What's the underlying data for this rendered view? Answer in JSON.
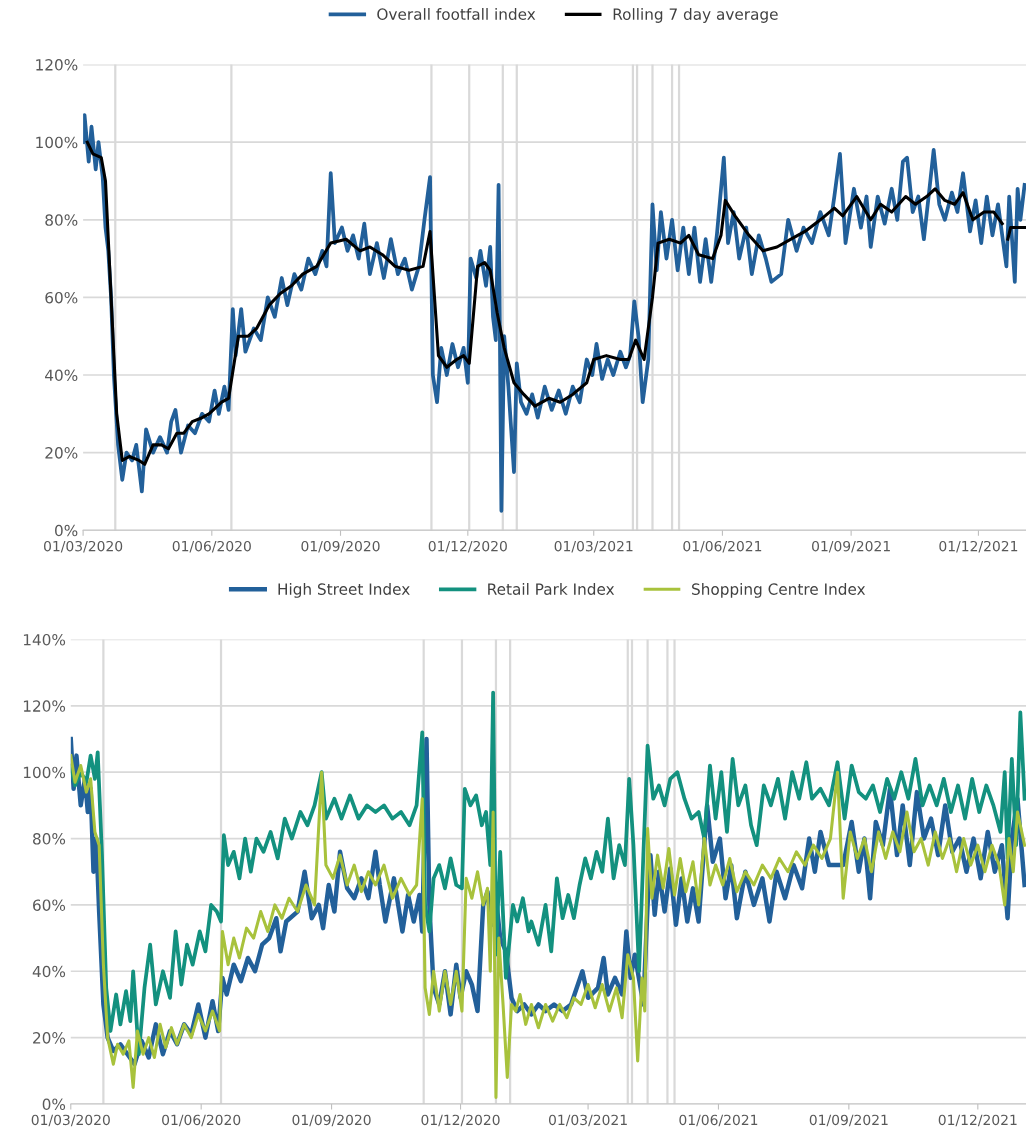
{
  "chart_data": [
    {
      "type": "line",
      "legend": "top",
      "grid": "y",
      "xlim": [
        "2020-03-01",
        "2022-01-04"
      ],
      "ylim": [
        0,
        120
      ],
      "yticks": [
        {
          "value": 0,
          "label": "0%"
        },
        {
          "value": 20,
          "label": "20%"
        },
        {
          "value": 40,
          "label": "40%"
        },
        {
          "value": 60,
          "label": "60%"
        },
        {
          "value": 80,
          "label": "80%"
        },
        {
          "value": 100,
          "label": "100%"
        },
        {
          "value": 120,
          "label": "120%"
        }
      ],
      "xticks": [
        {
          "value": "2020-03-01",
          "label": "01/03/2020"
        },
        {
          "value": "2020-06-01",
          "label": "01/06/2020"
        },
        {
          "value": "2020-09-01",
          "label": "01/09/2020"
        },
        {
          "value": "2020-12-01",
          "label": "01/12/2020"
        },
        {
          "value": "2021-03-01",
          "label": "01/03/2021"
        },
        {
          "value": "2021-06-01",
          "label": "01/06/2021"
        },
        {
          "value": "2021-09-01",
          "label": "01/09/2021"
        },
        {
          "value": "2021-12-01",
          "label": "01/12/2021"
        }
      ],
      "ref_lines": [
        {
          "axis": "x",
          "value": "2020-03-24",
          "color": "#d9d9d9"
        },
        {
          "axis": "x",
          "value": "2020-06-15",
          "color": "#d9d9d9"
        },
        {
          "axis": "x",
          "value": "2020-11-05",
          "color": "#d9d9d9"
        },
        {
          "axis": "x",
          "value": "2020-12-02",
          "color": "#d9d9d9"
        },
        {
          "axis": "x",
          "value": "2020-12-26",
          "color": "#d9d9d9"
        },
        {
          "axis": "x",
          "value": "2021-01-05",
          "color": "#d9d9d9"
        },
        {
          "axis": "x",
          "value": "2021-03-29",
          "color": "#d9d9d9"
        },
        {
          "axis": "x",
          "value": "2021-04-01",
          "color": "#d9d9d9"
        },
        {
          "axis": "x",
          "value": "2021-04-12",
          "color": "#d9d9d9"
        },
        {
          "axis": "x",
          "value": "2021-04-26",
          "color": "#d9d9d9"
        },
        {
          "axis": "x",
          "value": "2021-05-01",
          "color": "#d9d9d9"
        }
      ],
      "series": [
        {
          "name": "Overall footfall index",
          "color": "#22609a",
          "x": [
            "2020-03-01",
            "2020-03-02",
            "2020-03-05",
            "2020-03-07",
            "2020-03-10",
            "2020-03-12",
            "2020-03-15",
            "2020-03-17",
            "2020-03-19",
            "2020-03-21",
            "2020-03-23",
            "2020-03-26",
            "2020-03-29",
            "2020-04-01",
            "2020-04-05",
            "2020-04-08",
            "2020-04-12",
            "2020-04-15",
            "2020-04-20",
            "2020-04-25",
            "2020-04-30",
            "2020-05-03",
            "2020-05-06",
            "2020-05-10",
            "2020-05-15",
            "2020-05-20",
            "2020-05-25",
            "2020-05-30",
            "2020-06-03",
            "2020-06-06",
            "2020-06-10",
            "2020-06-13",
            "2020-06-16",
            "2020-06-18",
            "2020-06-22",
            "2020-06-25",
            "2020-07-01",
            "2020-07-06",
            "2020-07-11",
            "2020-07-16",
            "2020-07-21",
            "2020-07-25",
            "2020-07-30",
            "2020-08-04",
            "2020-08-09",
            "2020-08-14",
            "2020-08-19",
            "2020-08-22",
            "2020-08-25",
            "2020-08-28",
            "2020-09-02",
            "2020-09-06",
            "2020-09-10",
            "2020-09-14",
            "2020-09-18",
            "2020-09-22",
            "2020-09-27",
            "2020-10-02",
            "2020-10-07",
            "2020-10-12",
            "2020-10-17",
            "2020-10-22",
            "2020-10-27",
            "2020-10-31",
            "2020-11-04",
            "2020-11-06",
            "2020-11-09",
            "2020-11-12",
            "2020-11-16",
            "2020-11-20",
            "2020-11-24",
            "2020-11-28",
            "2020-12-01",
            "2020-12-03",
            "2020-12-07",
            "2020-12-10",
            "2020-12-14",
            "2020-12-17",
            "2020-12-19",
            "2020-12-21",
            "2020-12-23",
            "2020-12-25",
            "2020-12-27",
            "2020-12-30",
            "2021-01-03",
            "2021-01-05",
            "2021-01-08",
            "2021-01-12",
            "2021-01-16",
            "2021-01-20",
            "2021-01-25",
            "2021-01-30",
            "2021-02-04",
            "2021-02-09",
            "2021-02-14",
            "2021-02-19",
            "2021-02-24",
            "2021-02-28",
            "2021-03-03",
            "2021-03-07",
            "2021-03-11",
            "2021-03-15",
            "2021-03-20",
            "2021-03-24",
            "2021-03-27",
            "2021-03-30",
            "2021-04-02",
            "2021-04-05",
            "2021-04-09",
            "2021-04-12",
            "2021-04-15",
            "2021-04-18",
            "2021-04-22",
            "2021-04-26",
            "2021-04-30",
            "2021-05-04",
            "2021-05-08",
            "2021-05-12",
            "2021-05-16",
            "2021-05-20",
            "2021-05-24",
            "2021-05-28",
            "2021-06-02",
            "2021-06-05",
            "2021-06-09",
            "2021-06-13",
            "2021-06-18",
            "2021-06-22",
            "2021-06-27",
            "2021-07-02",
            "2021-07-06",
            "2021-07-13",
            "2021-07-18",
            "2021-07-24",
            "2021-07-29",
            "2021-08-04",
            "2021-08-10",
            "2021-08-16",
            "2021-08-20",
            "2021-08-24",
            "2021-08-28",
            "2021-09-03",
            "2021-09-08",
            "2021-09-12",
            "2021-09-15",
            "2021-09-20",
            "2021-09-25",
            "2021-09-30",
            "2021-10-04",
            "2021-10-08",
            "2021-10-11",
            "2021-10-15",
            "2021-10-19",
            "2021-10-23",
            "2021-10-27",
            "2021-10-30",
            "2021-11-03",
            "2021-11-07",
            "2021-11-12",
            "2021-11-16",
            "2021-11-20",
            "2021-11-25",
            "2021-11-29",
            "2021-12-03",
            "2021-12-07",
            "2021-12-11",
            "2021-12-15",
            "2021-12-21",
            "2021-12-23",
            "2021-12-27",
            "2021-12-29",
            "2021-12-31",
            "2022-01-03"
          ],
          "values": [
            100,
            107,
            95,
            104,
            93,
            100,
            91,
            78,
            72,
            60,
            40,
            22,
            13,
            20,
            18,
            22,
            10,
            26,
            20,
            24,
            20,
            28,
            31,
            20,
            27,
            25,
            30,
            28,
            36,
            30,
            37,
            31,
            57,
            45,
            57,
            46,
            52,
            49,
            60,
            55,
            65,
            58,
            66,
            62,
            70,
            66,
            72,
            68,
            92,
            74,
            78,
            72,
            76,
            70,
            79,
            66,
            74,
            65,
            75,
            66,
            70,
            62,
            68,
            80,
            91,
            40,
            33,
            47,
            40,
            48,
            42,
            47,
            38,
            70,
            65,
            72,
            63,
            73,
            55,
            49,
            89,
            5,
            50,
            37,
            15,
            43,
            33,
            30,
            35,
            29,
            37,
            31,
            36,
            30,
            37,
            33,
            44,
            40,
            48,
            39,
            44,
            40,
            46,
            42,
            45,
            59,
            50,
            33,
            44,
            84,
            67,
            82,
            70,
            80,
            67,
            78,
            66,
            78,
            64,
            75,
            64,
            76,
            96,
            74,
            82,
            70,
            78,
            66,
            76,
            70,
            64,
            66,
            80,
            72,
            78,
            74,
            82,
            76,
            86,
            97,
            74,
            88,
            78,
            86,
            73,
            86,
            79,
            88,
            80,
            95,
            96,
            82,
            86,
            75,
            88,
            98,
            84,
            80,
            87,
            82,
            92,
            77,
            85,
            74,
            86,
            76,
            84,
            68,
            86,
            64,
            88,
            80,
            89
          ]
        },
        {
          "name": "Rolling 7 day average",
          "color": "#000000",
          "x": [
            "2020-03-04",
            "2020-03-08",
            "2020-03-14",
            "2020-03-17",
            "2020-03-21",
            "2020-03-25",
            "2020-03-29",
            "2020-04-03",
            "2020-04-10",
            "2020-04-14",
            "2020-04-20",
            "2020-04-26",
            "2020-05-01",
            "2020-05-07",
            "2020-05-12",
            "2020-05-18",
            "2020-05-25",
            "2020-05-30",
            "2020-06-08",
            "2020-06-13",
            "2020-06-20",
            "2020-06-27",
            "2020-07-03",
            "2020-07-12",
            "2020-07-20",
            "2020-07-28",
            "2020-08-05",
            "2020-08-15",
            "2020-08-25",
            "2020-09-05",
            "2020-09-15",
            "2020-09-22",
            "2020-10-01",
            "2020-10-10",
            "2020-10-20",
            "2020-10-30",
            "2020-11-04",
            "2020-11-10",
            "2020-11-16",
            "2020-11-23",
            "2020-11-28",
            "2020-12-02",
            "2020-12-08",
            "2020-12-13",
            "2020-12-17",
            "2020-12-22",
            "2020-12-27",
            "2021-01-03",
            "2021-01-10",
            "2021-01-18",
            "2021-01-28",
            "2021-02-05",
            "2021-02-14",
            "2021-02-24",
            "2021-03-01",
            "2021-03-10",
            "2021-03-20",
            "2021-03-26",
            "2021-03-31",
            "2021-04-06",
            "2021-04-12",
            "2021-04-16",
            "2021-04-24",
            "2021-05-02",
            "2021-05-08",
            "2021-05-15",
            "2021-05-25",
            "2021-05-31",
            "2021-06-03",
            "2021-06-10",
            "2021-06-20",
            "2021-06-30",
            "2021-07-10",
            "2021-07-20",
            "2021-07-30",
            "2021-08-10",
            "2021-08-20",
            "2021-08-26",
            "2021-09-05",
            "2021-09-15",
            "2021-09-22",
            "2021-09-30",
            "2021-10-10",
            "2021-10-17",
            "2021-10-25",
            "2021-10-31",
            "2021-11-07",
            "2021-11-14",
            "2021-11-20",
            "2021-11-27",
            "2021-12-05",
            "2021-12-12",
            "2021-12-18",
            "2021-12-20",
            "2021-12-22",
            "2021-12-24",
            "2021-12-31",
            "2022-01-03"
          ],
          "values": [
            100,
            97,
            96,
            90,
            60,
            30,
            18,
            19,
            18,
            17,
            22,
            22,
            21,
            25,
            25,
            28,
            29,
            30,
            33,
            34,
            50,
            50,
            52,
            58,
            61,
            63,
            66,
            68,
            74,
            75,
            72,
            73,
            71,
            68,
            67,
            68,
            77,
            45,
            42,
            44,
            45,
            43,
            68,
            69,
            67,
            56,
            47,
            38,
            35,
            32,
            34,
            33,
            35,
            38,
            44,
            45,
            44,
            44,
            49,
            44,
            60,
            74,
            75,
            74,
            76,
            71,
            70,
            76,
            85,
            81,
            76,
            72,
            73,
            75,
            77,
            80,
            83,
            81,
            86,
            80,
            84,
            82,
            86,
            84,
            86,
            88,
            85,
            84,
            87,
            80,
            82,
            82,
            79,
            null,
            75,
            78,
            78,
            78
          ]
        }
      ]
    },
    {
      "type": "line",
      "legend": "top",
      "grid": "y",
      "xlim": [
        "2020-03-01",
        "2022-01-04"
      ],
      "ylim": [
        0,
        140
      ],
      "yticks": [
        {
          "value": 0,
          "label": "0%"
        },
        {
          "value": 20,
          "label": "20%"
        },
        {
          "value": 40,
          "label": "40%"
        },
        {
          "value": 60,
          "label": "60%"
        },
        {
          "value": 80,
          "label": "80%"
        },
        {
          "value": 100,
          "label": "100%"
        },
        {
          "value": 120,
          "label": "120%"
        },
        {
          "value": 140,
          "label": "140%"
        }
      ],
      "xticks": [
        {
          "value": "2020-03-01",
          "label": "01/03/2020"
        },
        {
          "value": "2020-06-01",
          "label": "01/06/2020"
        },
        {
          "value": "2020-09-01",
          "label": "01/09/2020"
        },
        {
          "value": "2020-12-01",
          "label": "01/12/2020"
        },
        {
          "value": "2021-03-01",
          "label": "01/03/2021"
        },
        {
          "value": "2021-06-01",
          "label": "01/06/2021"
        },
        {
          "value": "2021-09-01",
          "label": "01/09/2021"
        },
        {
          "value": "2021-12-01",
          "label": "01/12/2021"
        }
      ],
      "ref_lines": [
        {
          "axis": "x",
          "value": "2020-03-24",
          "color": "#d9d9d9"
        },
        {
          "axis": "x",
          "value": "2020-06-15",
          "color": "#d9d9d9"
        },
        {
          "axis": "x",
          "value": "2020-11-05",
          "color": "#d9d9d9"
        },
        {
          "axis": "x",
          "value": "2020-12-02",
          "color": "#d9d9d9"
        },
        {
          "axis": "x",
          "value": "2020-12-26",
          "color": "#d9d9d9"
        },
        {
          "axis": "x",
          "value": "2021-01-05",
          "color": "#d9d9d9"
        },
        {
          "axis": "x",
          "value": "2021-03-29",
          "color": "#d9d9d9"
        },
        {
          "axis": "x",
          "value": "2021-04-01",
          "color": "#d9d9d9"
        },
        {
          "axis": "x",
          "value": "2021-04-12",
          "color": "#d9d9d9"
        },
        {
          "axis": "x",
          "value": "2021-04-26",
          "color": "#d9d9d9"
        },
        {
          "axis": "x",
          "value": "2021-05-01",
          "color": "#d9d9d9"
        }
      ],
      "series": [
        {
          "name": "High Street Index",
          "color": "#22609a",
          "x": [
            "2020-03-01",
            "2020-03-03",
            "2020-03-05",
            "2020-03-08",
            "2020-03-11",
            "2020-03-13",
            "2020-03-15",
            "2020-03-17",
            "2020-03-19",
            "2020-03-21",
            "2020-03-24",
            "2020-03-27",
            "2020-03-31",
            "2020-04-05",
            "2020-04-10",
            "2020-04-15",
            "2020-04-20",
            "2020-04-25",
            "2020-04-30",
            "2020-05-05",
            "2020-05-10",
            "2020-05-15",
            "2020-05-20",
            "2020-05-25",
            "2020-05-30",
            "2020-06-04",
            "2020-06-09",
            "2020-06-13",
            "2020-06-16",
            "2020-06-19",
            "2020-06-24",
            "2020-06-29",
            "2020-07-04",
            "2020-07-09",
            "2020-07-14",
            "2020-07-19",
            "2020-07-24",
            "2020-07-27",
            "2020-07-31",
            "2020-08-08",
            "2020-08-13",
            "2020-08-18",
            "2020-08-23",
            "2020-08-26",
            "2020-08-30",
            "2020-09-03",
            "2020-09-07",
            "2020-09-12",
            "2020-09-17",
            "2020-09-22",
            "2020-09-27",
            "2020-10-02",
            "2020-10-05",
            "2020-10-09",
            "2020-10-15",
            "2020-10-21",
            "2020-10-25",
            "2020-10-29",
            "2020-11-02",
            "2020-11-04",
            "2020-11-07",
            "2020-11-09",
            "2020-11-12",
            "2020-11-16",
            "2020-11-20",
            "2020-11-24",
            "2020-11-28",
            "2020-12-01",
            "2020-12-05",
            "2020-12-09",
            "2020-12-13",
            "2020-12-17",
            "2020-12-20",
            "2020-12-23",
            "2020-12-26",
            "2020-12-29",
            "2021-01-02",
            "2021-01-06",
            "2021-01-10",
            "2021-01-15",
            "2021-01-20",
            "2021-01-25",
            "2021-01-30",
            "2021-02-05",
            "2021-02-11",
            "2021-02-17",
            "2021-02-25",
            "2021-03-01",
            "2021-03-08",
            "2021-03-12",
            "2021-03-15",
            "2021-03-20",
            "2021-03-25",
            "2021-03-28",
            "2021-03-31",
            "2021-04-03",
            "2021-04-09",
            "2021-04-12",
            "2021-04-14",
            "2021-04-17",
            "2021-04-20",
            "2021-04-24",
            "2021-04-28",
            "2021-05-02",
            "2021-05-06",
            "2021-05-10",
            "2021-05-14",
            "2021-05-18",
            "2021-05-24",
            "2021-05-28",
            "2021-06-02",
            "2021-06-06",
            "2021-06-10",
            "2021-06-14",
            "2021-06-20",
            "2021-06-26",
            "2021-07-02",
            "2021-07-07",
            "2021-07-12",
            "2021-07-18",
            "2021-07-24",
            "2021-07-30",
            "2021-08-04",
            "2021-08-08",
            "2021-08-12",
            "2021-08-18",
            "2021-08-28",
            "2021-09-03",
            "2021-09-08",
            "2021-09-12",
            "2021-09-16",
            "2021-09-20",
            "2021-09-25",
            "2021-09-30",
            "2021-10-05",
            "2021-10-09",
            "2021-10-14",
            "2021-10-19",
            "2021-10-24",
            "2021-10-29",
            "2021-11-03",
            "2021-11-08",
            "2021-11-13",
            "2021-11-18",
            "2021-11-23",
            "2021-11-28",
            "2021-12-03",
            "2021-12-08",
            "2021-12-13",
            "2021-12-18",
            "2021-12-22",
            "2021-12-25",
            "2021-12-29",
            "2022-01-03"
          ],
          "values": [
            110,
            95,
            105,
            90,
            98,
            88,
            95,
            70,
            80,
            58,
            30,
            20,
            16,
            18,
            15,
            12,
            19,
            14,
            24,
            15,
            22,
            18,
            24,
            21,
            30,
            20,
            31,
            22,
            38,
            33,
            42,
            37,
            44,
            40,
            48,
            50,
            56,
            46,
            55,
            58,
            70,
            56,
            60,
            53,
            66,
            58,
            76,
            65,
            62,
            68,
            62,
            76,
            66,
            55,
            68,
            52,
            63,
            55,
            63,
            52,
            110,
            60,
            35,
            30,
            40,
            27,
            42,
            32,
            40,
            36,
            28,
            60,
            64,
            54,
            62,
            50,
            46,
            32,
            28,
            30,
            27,
            30,
            28,
            30,
            28,
            30,
            40,
            32,
            35,
            44,
            33,
            38,
            33,
            52,
            38,
            45,
            30,
            60,
            75,
            57,
            70,
            58,
            71,
            54,
            68,
            55,
            65,
            55,
            90,
            73,
            80,
            62,
            72,
            56,
            70,
            60,
            68,
            55,
            70,
            62,
            72,
            65,
            80,
            70,
            82,
            72,
            72,
            85,
            70,
            80,
            62,
            85,
            78,
            95,
            75,
            90,
            72,
            94,
            80,
            86,
            75,
            90,
            76,
            80,
            70,
            80,
            68,
            82,
            70,
            78,
            56,
            80,
            92,
            66
          ]
        },
        {
          "name": "Retail Park Index",
          "color": "#13917f",
          "x": [
            "2020-03-01",
            "2020-03-04",
            "2020-03-08",
            "2020-03-12",
            "2020-03-15",
            "2020-03-18",
            "2020-03-20",
            "2020-03-23",
            "2020-03-26",
            "2020-03-29",
            "2020-04-02",
            "2020-04-05",
            "2020-04-09",
            "2020-04-12",
            "2020-04-14",
            "2020-04-18",
            "2020-04-22",
            "2020-04-26",
            "2020-04-30",
            "2020-05-05",
            "2020-05-10",
            "2020-05-14",
            "2020-05-18",
            "2020-05-22",
            "2020-05-26",
            "2020-05-31",
            "2020-06-04",
            "2020-06-08",
            "2020-06-12",
            "2020-06-15",
            "2020-06-17",
            "2020-06-20",
            "2020-06-24",
            "2020-06-28",
            "2020-07-02",
            "2020-07-06",
            "2020-07-10",
            "2020-07-15",
            "2020-07-20",
            "2020-07-25",
            "2020-07-30",
            "2020-08-04",
            "2020-08-10",
            "2020-08-15",
            "2020-08-20",
            "2020-08-25",
            "2020-08-28",
            "2020-09-03",
            "2020-09-08",
            "2020-09-14",
            "2020-09-20",
            "2020-09-26",
            "2020-10-02",
            "2020-10-08",
            "2020-10-14",
            "2020-10-20",
            "2020-10-26",
            "2020-10-31",
            "2020-11-04",
            "2020-11-06",
            "2020-11-09",
            "2020-11-12",
            "2020-11-16",
            "2020-11-20",
            "2020-11-24",
            "2020-11-28",
            "2020-12-02",
            "2020-12-04",
            "2020-12-08",
            "2020-12-12",
            "2020-12-16",
            "2020-12-19",
            "2020-12-22",
            "2020-12-24",
            "2020-12-26",
            "2020-12-29",
            "2021-01-02",
            "2021-01-07",
            "2021-01-10",
            "2021-01-14",
            "2021-01-18",
            "2021-01-20",
            "2021-01-25",
            "2021-01-30",
            "2021-02-03",
            "2021-02-07",
            "2021-02-11",
            "2021-02-15",
            "2021-02-19",
            "2021-02-23",
            "2021-02-27",
            "2021-03-03",
            "2021-03-07",
            "2021-03-11",
            "2021-03-15",
            "2021-03-19",
            "2021-03-23",
            "2021-03-27",
            "2021-03-30",
            "2021-04-02",
            "2021-04-06",
            "2021-04-09",
            "2021-04-12",
            "2021-04-16",
            "2021-04-20",
            "2021-04-24",
            "2021-04-28",
            "2021-05-03",
            "2021-05-08",
            "2021-05-13",
            "2021-05-18",
            "2021-05-22",
            "2021-05-26",
            "2021-05-30",
            "2021-06-03",
            "2021-06-07",
            "2021-06-11",
            "2021-06-15",
            "2021-06-20",
            "2021-06-24",
            "2021-06-28",
            "2021-07-03",
            "2021-07-08",
            "2021-07-13",
            "2021-07-18",
            "2021-07-23",
            "2021-07-28",
            "2021-08-02",
            "2021-08-06",
            "2021-08-12",
            "2021-08-18",
            "2021-08-24",
            "2021-08-29",
            "2021-09-03",
            "2021-09-08",
            "2021-09-13",
            "2021-09-18",
            "2021-09-23",
            "2021-09-28",
            "2021-10-03",
            "2021-10-08",
            "2021-10-13",
            "2021-10-18",
            "2021-10-23",
            "2021-10-28",
            "2021-11-02",
            "2021-11-07",
            "2021-11-12",
            "2021-11-17",
            "2021-11-22",
            "2021-11-27",
            "2021-12-02",
            "2021-12-07",
            "2021-12-12",
            "2021-12-17",
            "2021-12-20",
            "2021-12-22",
            "2021-12-25",
            "2021-12-28",
            "2021-12-31",
            "2022-01-03"
          ],
          "values": [
            102,
            96,
            100,
            97,
            105,
            98,
            106,
            75,
            35,
            22,
            33,
            24,
            34,
            25,
            40,
            15,
            35,
            48,
            30,
            40,
            32,
            52,
            36,
            48,
            42,
            52,
            46,
            60,
            58,
            55,
            81,
            72,
            76,
            68,
            80,
            70,
            80,
            76,
            82,
            74,
            86,
            80,
            88,
            84,
            90,
            100,
            86,
            92,
            86,
            93,
            86,
            90,
            88,
            90,
            86,
            88,
            84,
            90,
            112,
            60,
            52,
            68,
            72,
            65,
            74,
            66,
            65,
            95,
            90,
            93,
            84,
            88,
            72,
            124,
            45,
            76,
            38,
            60,
            55,
            62,
            52,
            55,
            48,
            60,
            46,
            68,
            56,
            63,
            56,
            66,
            74,
            68,
            76,
            70,
            86,
            68,
            78,
            72,
            98,
            78,
            40,
            75,
            108,
            92,
            96,
            90,
            98,
            100,
            92,
            86,
            88,
            80,
            102,
            86,
            100,
            82,
            104,
            90,
            96,
            84,
            78,
            96,
            90,
            98,
            86,
            100,
            92,
            103,
            92,
            95,
            90,
            103,
            86,
            102,
            94,
            92,
            96,
            88,
            98,
            92,
            100,
            92,
            104,
            90,
            96,
            90,
            98,
            88,
            96,
            86,
            98,
            88,
            96,
            90,
            82,
            100,
            74,
            104,
            78,
            118,
            92
          ]
        },
        {
          "name": "Shopping Centre Index",
          "color": "#a8c23c",
          "x": [
            "2020-03-01",
            "2020-03-04",
            "2020-03-08",
            "2020-03-12",
            "2020-03-15",
            "2020-03-18",
            "2020-03-21",
            "2020-03-24",
            "2020-03-27",
            "2020-03-31",
            "2020-04-03",
            "2020-04-07",
            "2020-04-11",
            "2020-04-14",
            "2020-04-17",
            "2020-04-21",
            "2020-04-25",
            "2020-04-29",
            "2020-05-03",
            "2020-05-07",
            "2020-05-11",
            "2020-05-15",
            "2020-05-20",
            "2020-05-25",
            "2020-05-30",
            "2020-06-04",
            "2020-06-09",
            "2020-06-14",
            "2020-06-16",
            "2020-06-20",
            "2020-06-24",
            "2020-06-28",
            "2020-07-03",
            "2020-07-08",
            "2020-07-13",
            "2020-07-18",
            "2020-07-23",
            "2020-07-28",
            "2020-08-02",
            "2020-08-08",
            "2020-08-14",
            "2020-08-20",
            "2020-08-25",
            "2020-08-28",
            "2020-09-02",
            "2020-09-07",
            "2020-09-12",
            "2020-09-17",
            "2020-09-22",
            "2020-09-27",
            "2020-10-02",
            "2020-10-08",
            "2020-10-14",
            "2020-10-20",
            "2020-10-26",
            "2020-10-31",
            "2020-11-04",
            "2020-11-06",
            "2020-11-09",
            "2020-11-12",
            "2020-11-16",
            "2020-11-20",
            "2020-11-24",
            "2020-11-28",
            "2020-12-02",
            "2020-12-05",
            "2020-12-09",
            "2020-12-13",
            "2020-12-17",
            "2020-12-20",
            "2020-12-22",
            "2020-12-24",
            "2020-12-26",
            "2020-12-28",
            "2020-12-31",
            "2021-01-03",
            "2021-01-06",
            "2021-01-09",
            "2021-01-12",
            "2021-01-16",
            "2021-01-20",
            "2021-01-25",
            "2021-01-30",
            "2021-02-04",
            "2021-02-09",
            "2021-02-14",
            "2021-02-19",
            "2021-02-24",
            "2021-03-01",
            "2021-03-06",
            "2021-03-11",
            "2021-03-16",
            "2021-03-21",
            "2021-03-25",
            "2021-03-29",
            "2021-04-02",
            "2021-04-05",
            "2021-04-08",
            "2021-04-10",
            "2021-04-12",
            "2021-04-15",
            "2021-04-19",
            "2021-04-23",
            "2021-04-27",
            "2021-05-01",
            "2021-05-05",
            "2021-05-09",
            "2021-05-14",
            "2021-05-18",
            "2021-05-22",
            "2021-05-26",
            "2021-05-30",
            "2021-06-04",
            "2021-06-09",
            "2021-06-14",
            "2021-06-20",
            "2021-06-26",
            "2021-07-02",
            "2021-07-08",
            "2021-07-14",
            "2021-07-20",
            "2021-07-26",
            "2021-08-01",
            "2021-08-07",
            "2021-08-13",
            "2021-08-19",
            "2021-08-24",
            "2021-08-28",
            "2021-09-02",
            "2021-09-07",
            "2021-09-12",
            "2021-09-17",
            "2021-09-22",
            "2021-09-27",
            "2021-10-02",
            "2021-10-07",
            "2021-10-12",
            "2021-10-17",
            "2021-10-22",
            "2021-10-27",
            "2021-11-01",
            "2021-11-06",
            "2021-11-11",
            "2021-11-16",
            "2021-11-21",
            "2021-11-26",
            "2021-12-01",
            "2021-12-06",
            "2021-12-11",
            "2021-12-16",
            "2021-12-20",
            "2021-12-23",
            "2021-12-26",
            "2021-12-29",
            "2022-01-03"
          ],
          "values": [
            105,
            97,
            102,
            94,
            98,
            82,
            78,
            42,
            20,
            12,
            18,
            15,
            19,
            5,
            22,
            15,
            20,
            14,
            24,
            17,
            23,
            18,
            24,
            20,
            27,
            22,
            28,
            22,
            52,
            42,
            50,
            44,
            53,
            50,
            58,
            52,
            60,
            56,
            62,
            58,
            66,
            60,
            100,
            72,
            68,
            75,
            66,
            72,
            64,
            70,
            66,
            72,
            62,
            68,
            63,
            66,
            92,
            35,
            27,
            40,
            28,
            40,
            30,
            40,
            28,
            68,
            62,
            70,
            60,
            65,
            40,
            88,
            2,
            50,
            30,
            8,
            30,
            28,
            33,
            24,
            30,
            23,
            30,
            25,
            30,
            26,
            32,
            30,
            36,
            29,
            36,
            28,
            35,
            26,
            45,
            38,
            13,
            38,
            28,
            83,
            62,
            75,
            65,
            77,
            63,
            74,
            64,
            73,
            60,
            80,
            66,
            72,
            66,
            74,
            64,
            70,
            66,
            72,
            68,
            74,
            70,
            76,
            72,
            78,
            74,
            80,
            100,
            62,
            82,
            74,
            80,
            70,
            82,
            74,
            82,
            76,
            88,
            76,
            80,
            72,
            82,
            74,
            80,
            70,
            80,
            72,
            78,
            70,
            78,
            72,
            60,
            80,
            70,
            88,
            78
          ]
        }
      ]
    }
  ]
}
